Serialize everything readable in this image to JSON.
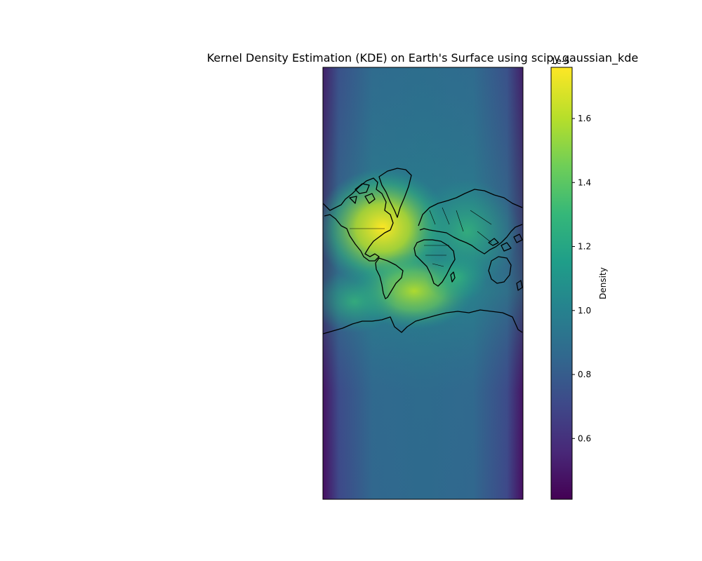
{
  "chart_data": {
    "type": "heatmap",
    "title": "Kernel Density Estimation (KDE) on Earth's Surface using scipy.gaussian_kde",
    "colormap": "viridis",
    "colorbar": {
      "label": "Density",
      "offset_text": "1e-5",
      "range": [
        0.41,
        1.76
      ],
      "ticks": [
        0.6,
        0.8,
        1.0,
        1.2,
        1.4,
        1.6
      ],
      "tick_labels": [
        "0.6",
        "0.8",
        "1.0",
        "1.2",
        "1.4",
        "1.6"
      ]
    },
    "colors": {
      "viridis": [
        "#440154",
        "#482878",
        "#3e4989",
        "#31688e",
        "#26828e",
        "#1f9e89",
        "#35b779",
        "#6ece58",
        "#b5de2b",
        "#fde725"
      ],
      "coastline": "#000000"
    }
  }
}
